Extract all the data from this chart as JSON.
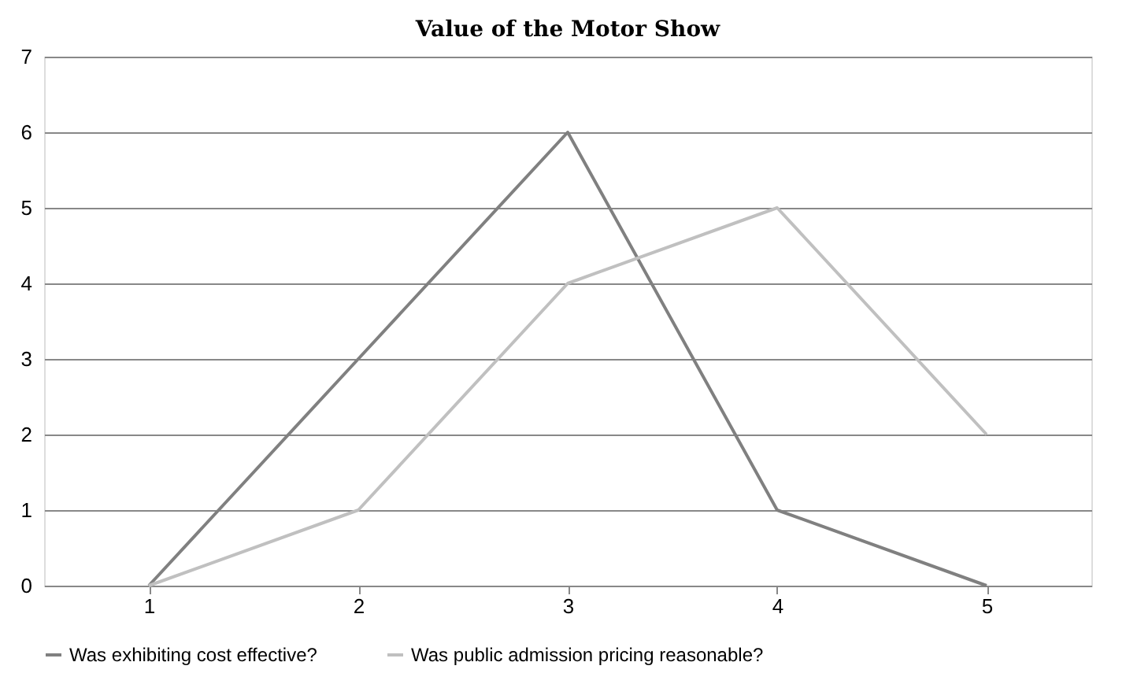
{
  "chart_data": {
    "type": "line",
    "title": "Value of the Motor Show",
    "categories": [
      "1",
      "2",
      "3",
      "4",
      "5"
    ],
    "series": [
      {
        "name": "Was exhibiting cost effective?",
        "color": "#808080",
        "values": [
          0,
          3,
          6,
          1,
          0
        ]
      },
      {
        "name": "Was public admission pricing reasonable?",
        "color": "#c0c0c0",
        "values": [
          0,
          1,
          4,
          5,
          2
        ]
      }
    ],
    "ylim": [
      0,
      7
    ],
    "yticks": [
      0,
      1,
      2,
      3,
      4,
      5,
      6,
      7
    ],
    "grid": "y",
    "legend": "bottom",
    "marker": "none",
    "line_style": "solid"
  }
}
